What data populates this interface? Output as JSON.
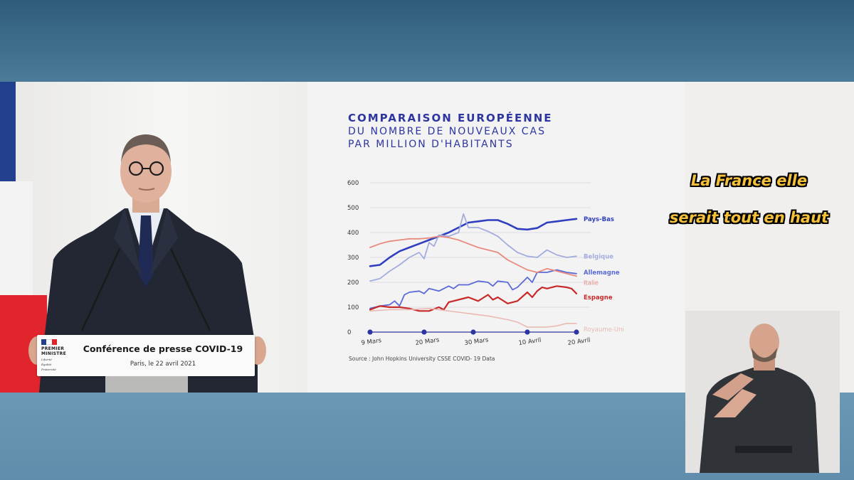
{
  "podium": {
    "logo_line1": "PREMIER",
    "logo_line2": "MINISTRE",
    "motto_1": "Liberté",
    "motto_2": "Égalité",
    "motto_3": "Fraternité",
    "title": "Conférence de presse COVID-19",
    "subtitle": "Paris, le 22 avril 2021"
  },
  "caption": {
    "line1": "La France elle",
    "line2": "serait tout en haut"
  },
  "colors": {
    "title_blue": "#2d35a0",
    "flag_blue": "#23408e",
    "flag_red": "#e1252c",
    "caption_yellow": "#f6c13a"
  },
  "chart_data": {
    "type": "line",
    "title": "COMPARAISON EUROPÉENNE",
    "subtitle": "DU NOMBRE DE NOUVEAUX CAS PAR MILLION D'HABITANTS",
    "title_line2": "DU NOMBRE DE NOUVEAUX CAS",
    "title_line3": "PAR MILLION D'HABITANTS",
    "source": "Source : John Hopkins University CSSE COVID- 19 Data",
    "ylim": [
      0,
      600
    ],
    "yticks": [
      "0",
      "100",
      "200",
      "300",
      "400",
      "500",
      "600"
    ],
    "xlim": [
      0,
      42
    ],
    "xticks": [
      {
        "x": 0,
        "label": "9 Mars"
      },
      {
        "x": 11,
        "label": "20 Mars"
      },
      {
        "x": 21,
        "label": "30 Mars"
      },
      {
        "x": 32,
        "label": "10 Avril"
      },
      {
        "x": 42,
        "label": "20 Avril"
      }
    ],
    "grid": true,
    "series": [
      {
        "name": "Pays-Bas",
        "color": "#2f3fc0",
        "width": 2.6,
        "x": [
          0,
          2,
          4,
          6,
          8,
          10,
          12,
          14,
          16,
          18,
          20,
          22,
          24,
          26,
          28,
          30,
          32,
          34,
          36,
          38,
          40,
          42
        ],
        "y": [
          265,
          270,
          300,
          325,
          340,
          355,
          370,
          385,
          400,
          420,
          440,
          445,
          450,
          450,
          435,
          415,
          412,
          418,
          440,
          445,
          450,
          455
        ]
      },
      {
        "name": "Belgique",
        "color": "#a3acdd",
        "width": 1.8,
        "x": [
          0,
          2,
          4,
          6,
          8,
          10,
          11,
          12,
          13,
          14,
          16,
          18,
          19,
          20,
          22,
          24,
          26,
          28,
          30,
          32,
          34,
          36,
          38,
          40,
          42
        ],
        "y": [
          205,
          215,
          245,
          270,
          300,
          320,
          295,
          360,
          345,
          390,
          385,
          400,
          475,
          420,
          420,
          405,
          385,
          350,
          320,
          305,
          300,
          330,
          310,
          300,
          305
        ]
      },
      {
        "name": "Allemagne",
        "color": "#5b6ad6",
        "width": 1.8,
        "x": [
          0,
          2,
          4,
          5,
          6,
          7,
          8,
          10,
          11,
          12,
          14,
          16,
          17,
          18,
          20,
          22,
          24,
          25,
          26,
          28,
          29,
          30,
          32,
          33,
          34,
          36,
          38,
          40,
          42
        ],
        "y": [
          95,
          105,
          110,
          125,
          105,
          150,
          160,
          165,
          155,
          175,
          165,
          185,
          175,
          190,
          190,
          205,
          200,
          185,
          205,
          200,
          170,
          180,
          220,
          200,
          240,
          240,
          250,
          240,
          235
        ]
      },
      {
        "name": "Italie",
        "color": "#e88a7e",
        "width": 1.8,
        "x": [
          0,
          2,
          4,
          6,
          8,
          10,
          12,
          14,
          16,
          18,
          20,
          22,
          24,
          26,
          28,
          30,
          32,
          34,
          36,
          38,
          40,
          42
        ],
        "y": [
          340,
          355,
          365,
          370,
          375,
          375,
          378,
          385,
          380,
          370,
          355,
          340,
          330,
          320,
          290,
          270,
          250,
          240,
          255,
          245,
          235,
          225
        ]
      },
      {
        "name": "Espagne",
        "color": "#c82a2a",
        "width": 2.2,
        "x": [
          0,
          2,
          4,
          6,
          8,
          10,
          12,
          14,
          15,
          16,
          18,
          20,
          22,
          24,
          25,
          26,
          28,
          30,
          32,
          33,
          34,
          35,
          36,
          38,
          40,
          41,
          42
        ],
        "y": [
          90,
          105,
          100,
          100,
          95,
          85,
          85,
          100,
          90,
          120,
          130,
          140,
          125,
          150,
          130,
          140,
          115,
          125,
          160,
          140,
          165,
          180,
          175,
          185,
          180,
          175,
          155
        ]
      },
      {
        "name": "Royaume-Uni",
        "color": "#eab9b2",
        "width": 1.6,
        "x": [
          0,
          4,
          8,
          12,
          16,
          20,
          24,
          28,
          30,
          32,
          34,
          36,
          38,
          40,
          42
        ],
        "y": [
          85,
          90,
          90,
          95,
          85,
          75,
          65,
          50,
          40,
          20,
          20,
          20,
          25,
          35,
          35
        ]
      }
    ],
    "labels": [
      {
        "name": "Pays-Bas",
        "bold": true
      },
      {
        "name": "Belgique",
        "bold": true
      },
      {
        "name": "Allemagne",
        "bold": true
      },
      {
        "name": "Italie",
        "bold": false
      },
      {
        "name": "Espagne",
        "bold": true
      },
      {
        "name": "Royaume-Uni",
        "bold": false
      }
    ]
  }
}
